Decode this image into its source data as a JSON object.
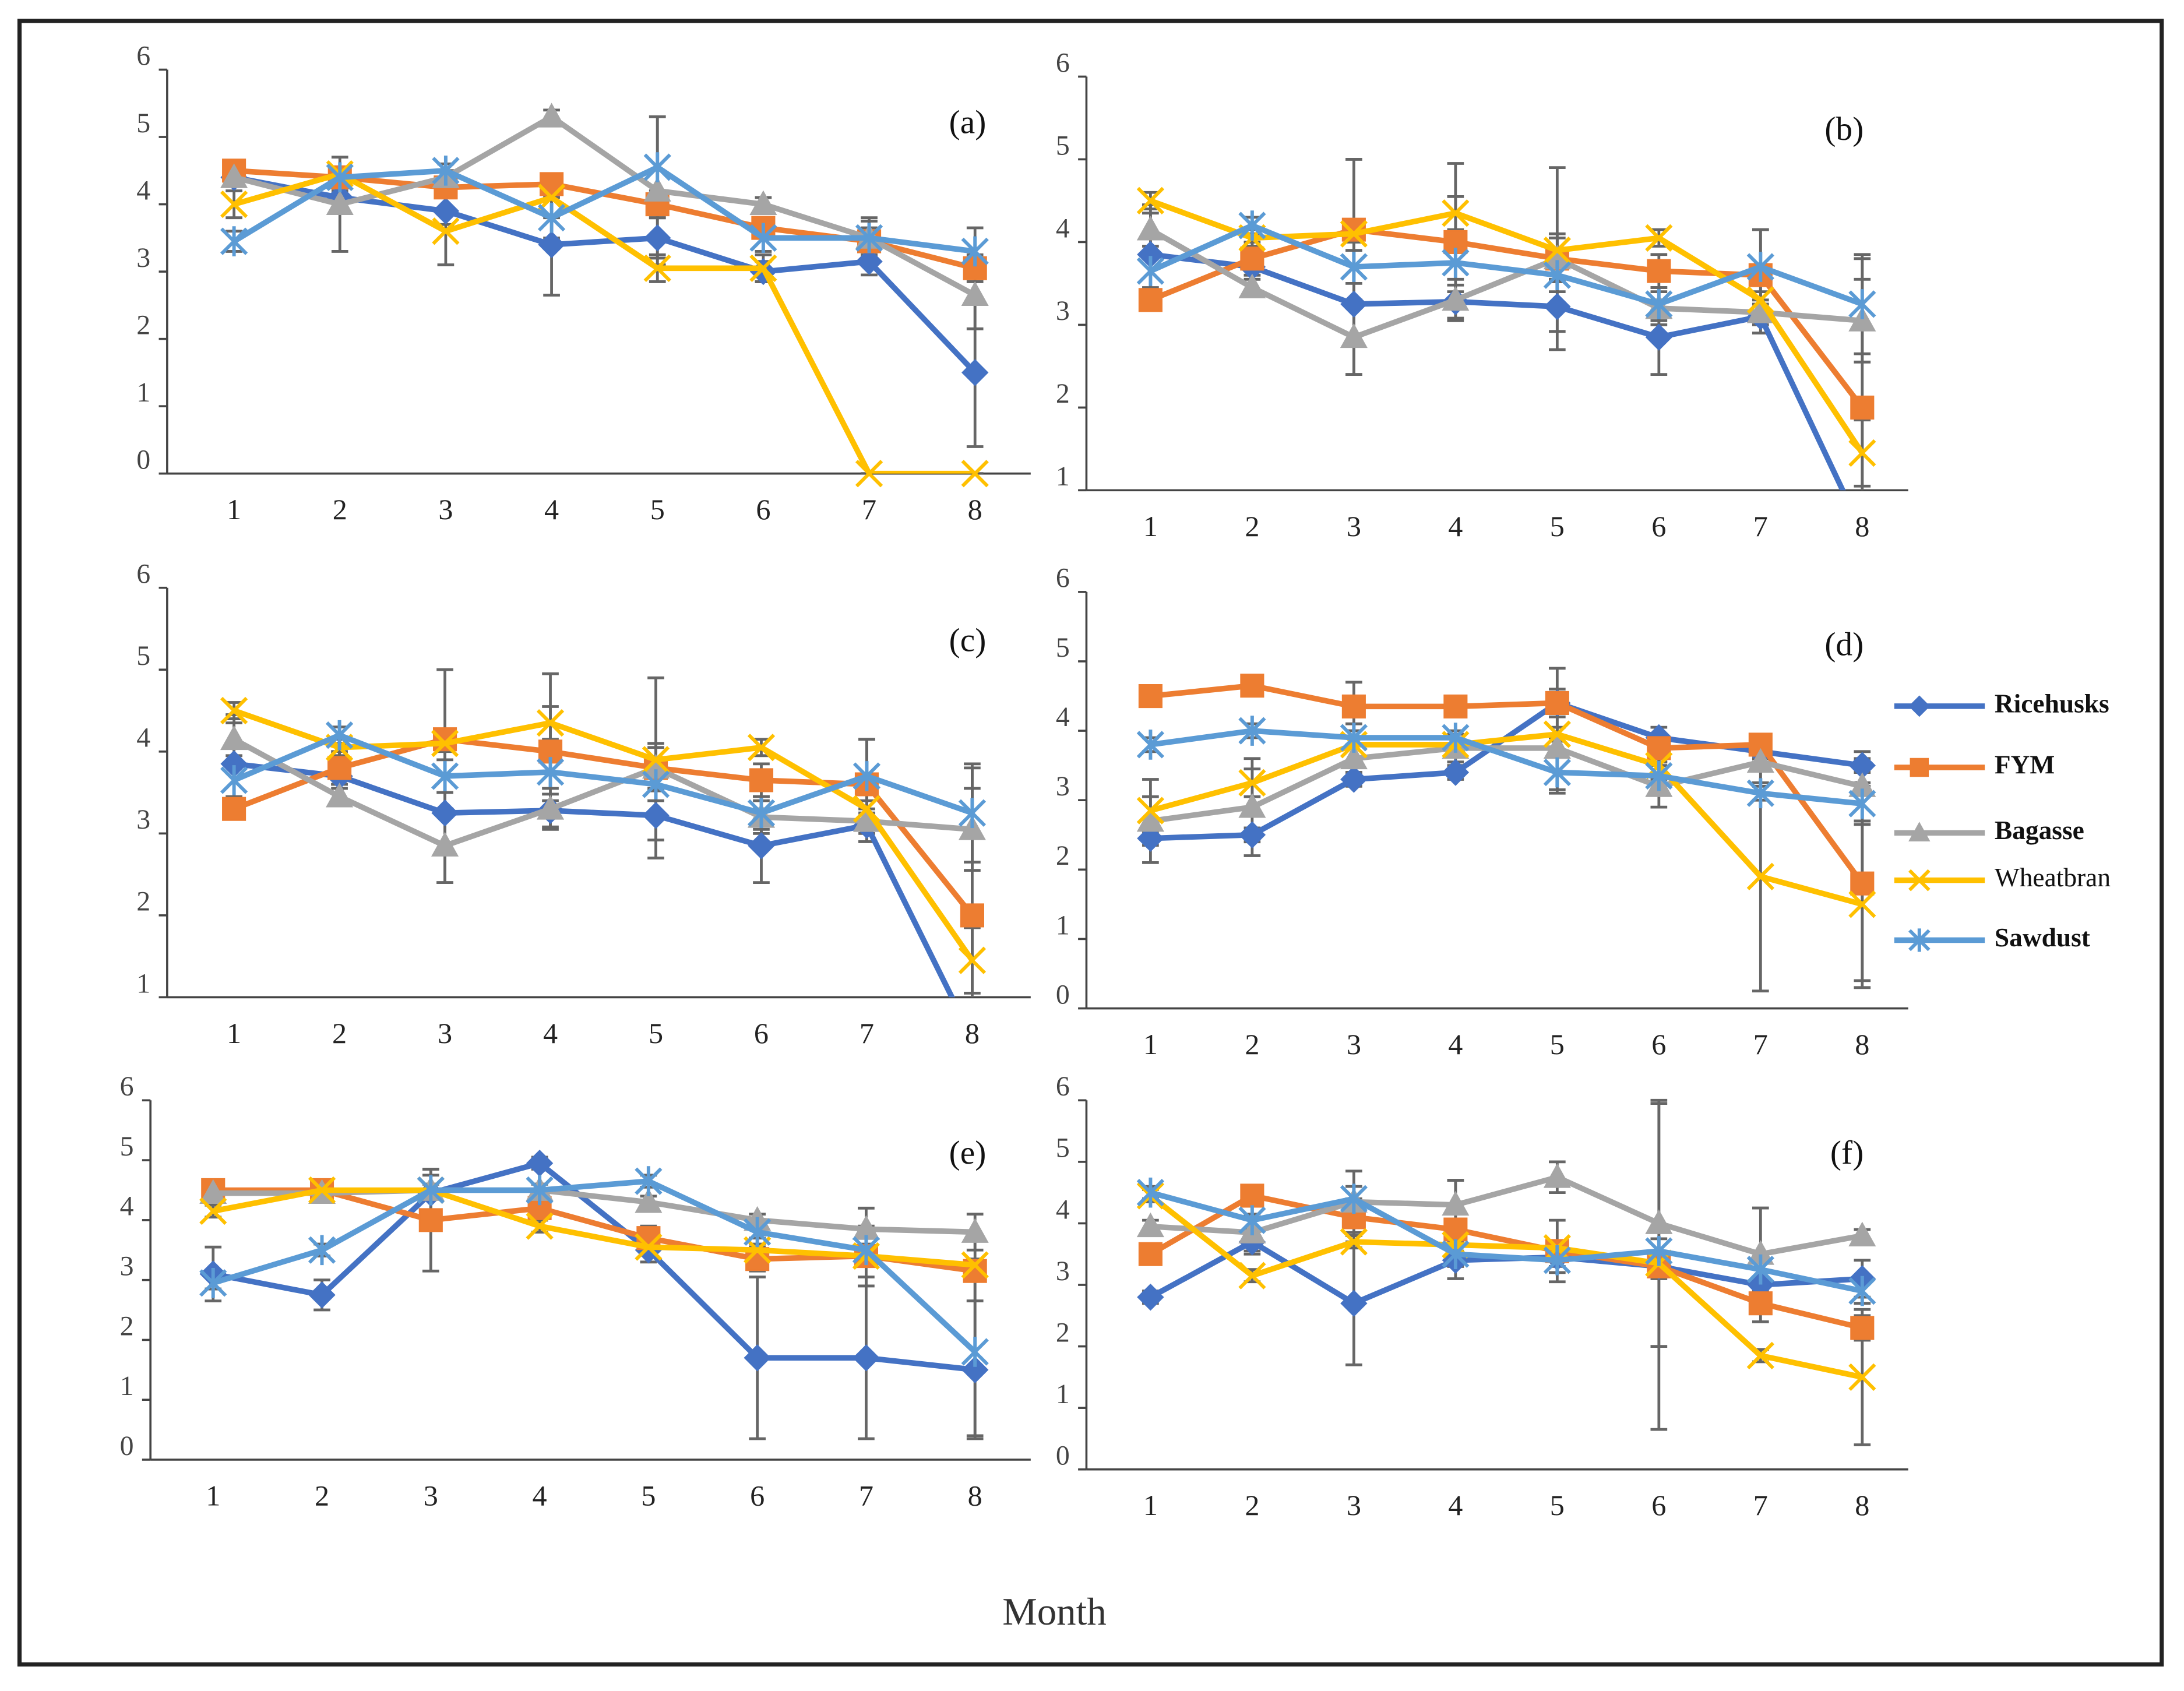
{
  "legend": [
    {
      "name": "Ricehusks",
      "color": "#4472c4",
      "marker": "diamond"
    },
    {
      "name": "FYM",
      "color": "#ed7d31",
      "marker": "square"
    },
    {
      "name": "Bagasse",
      "color": "#a5a5a5",
      "marker": "triangle"
    },
    {
      "name": "Wheatbran",
      "color": "#ffc000",
      "marker": "x"
    },
    {
      "name": "Sawdust",
      "color": "#5b9bd5",
      "marker": "asterisk"
    }
  ],
  "x_label": "Month",
  "chart_data": [
    {
      "type": "line",
      "title": "(a)",
      "categories": [
        1,
        2,
        3,
        4,
        5,
        6,
        7,
        8
      ],
      "ylim": [
        0,
        6
      ],
      "yticks": [
        0,
        1,
        2,
        3,
        4,
        5,
        6
      ],
      "series": [
        {
          "values": [
            4.4,
            4.1,
            3.9,
            3.4,
            3.5,
            3.0,
            3.15,
            1.5
          ],
          "errors": [
            0.1,
            0.1,
            0.2,
            0.75,
            0.3,
            0.15,
            0.2,
            1.1
          ]
        },
        {
          "values": [
            4.5,
            4.4,
            4.25,
            4.3,
            4.0,
            3.65,
            3.45,
            3.05
          ],
          "errors": [
            0.1,
            0.1,
            0.1,
            0.1,
            0.2,
            0.15,
            0.2,
            0.2
          ]
        },
        {
          "values": [
            4.4,
            4.0,
            4.4,
            5.3,
            4.2,
            4.0,
            3.5,
            2.65
          ],
          "errors": [
            0.1,
            0.7,
            0.1,
            0.1,
            1.1,
            0.1,
            0.3,
            0.5
          ]
        },
        {
          "values": [
            4.0,
            4.45,
            3.6,
            4.1,
            3.05,
            3.05,
            0,
            0
          ],
          "errors": [
            0.2,
            0.1,
            0.5,
            0.3,
            0.2,
            0.2,
            0,
            0
          ]
        },
        {
          "values": [
            3.45,
            4.4,
            4.5,
            3.8,
            4.55,
            3.5,
            3.5,
            3.3
          ],
          "errors": [
            0.15,
            0.1,
            0.1,
            0.3,
            0.75,
            0.2,
            0.25,
            0.35
          ]
        }
      ]
    },
    {
      "type": "line",
      "title": "(b)",
      "categories": [
        1,
        2,
        3,
        4,
        5,
        6,
        7,
        8
      ],
      "ylim": [
        1,
        6
      ],
      "yticks": [
        1,
        2,
        3,
        4,
        5,
        6
      ],
      "series": [
        {
          "values": [
            3.85,
            3.7,
            3.25,
            3.28,
            3.22,
            2.85,
            3.1,
            0.5
          ],
          "errors": [
            0.6,
            0.1,
            0.85,
            0.2,
            0.3,
            0.45,
            0.2,
            0.3
          ]
        },
        {
          "values": [
            3.3,
            3.8,
            4.15,
            4.0,
            3.8,
            3.65,
            3.6,
            2.0
          ],
          "errors": [
            0.1,
            0.2,
            0.85,
            0.95,
            1.1,
            0.2,
            0.55,
            1.8
          ]
        },
        {
          "values": [
            4.15,
            3.45,
            2.85,
            3.3,
            3.8,
            3.2,
            3.15,
            3.05
          ],
          "errors": [
            0.2,
            0.1,
            0.45,
            0.1,
            0.25,
            0.2,
            0.25,
            0.5
          ]
        },
        {
          "values": [
            4.5,
            4.05,
            4.1,
            4.35,
            3.9,
            4.05,
            3.3,
            1.45
          ],
          "errors": [
            0.1,
            0.1,
            0.1,
            0.2,
            0.2,
            0.1,
            0.3,
            0.4
          ]
        },
        {
          "values": [
            3.65,
            4.2,
            3.7,
            3.75,
            3.6,
            3.25,
            3.7,
            3.25
          ],
          "errors": [
            0.2,
            0.1,
            0.2,
            0.2,
            0.2,
            0.2,
            0.45,
            0.6
          ]
        }
      ]
    },
    {
      "type": "line",
      "title": "(c)",
      "categories": [
        1,
        2,
        3,
        4,
        5,
        6,
        7,
        8
      ],
      "ylim": [
        1,
        6
      ],
      "yticks": [
        1,
        2,
        3,
        4,
        5,
        6
      ],
      "series": [
        {
          "values": [
            3.85,
            3.7,
            3.25,
            3.28,
            3.22,
            2.85,
            3.1,
            0.5
          ],
          "errors": [
            0.6,
            0.1,
            0.85,
            0.2,
            0.3,
            0.45,
            0.2,
            0.3
          ]
        },
        {
          "values": [
            3.3,
            3.8,
            4.15,
            4.0,
            3.8,
            3.65,
            3.6,
            2.0
          ],
          "errors": [
            0.1,
            0.2,
            0.85,
            0.95,
            1.1,
            0.2,
            0.55,
            1.8
          ]
        },
        {
          "values": [
            4.15,
            3.45,
            2.85,
            3.3,
            3.8,
            3.2,
            3.15,
            3.05
          ],
          "errors": [
            0.2,
            0.1,
            0.45,
            0.1,
            0.25,
            0.2,
            0.25,
            0.5
          ]
        },
        {
          "values": [
            4.5,
            4.05,
            4.1,
            4.35,
            3.9,
            4.05,
            3.3,
            1.45
          ],
          "errors": [
            0.1,
            0.1,
            0.1,
            0.2,
            0.2,
            0.1,
            0.3,
            0.4
          ]
        },
        {
          "values": [
            3.65,
            4.2,
            3.7,
            3.75,
            3.6,
            3.25,
            3.7,
            3.25
          ],
          "errors": [
            0.2,
            0.1,
            0.2,
            0.2,
            0.2,
            0.2,
            0.45,
            0.6
          ]
        }
      ]
    },
    {
      "type": "line",
      "title": "(d)",
      "categories": [
        1,
        2,
        3,
        4,
        5,
        6,
        7,
        8
      ],
      "ylim": [
        0,
        6
      ],
      "yticks": [
        0,
        1,
        2,
        3,
        4,
        5,
        6
      ],
      "series": [
        {
          "values": [
            2.45,
            2.5,
            3.3,
            3.4,
            4.4,
            3.9,
            3.7,
            3.5
          ],
          "errors": [
            0.1,
            0.1,
            0.1,
            0.1,
            0.5,
            0.15,
            0.1,
            0.1
          ]
        },
        {
          "values": [
            4.5,
            4.65,
            4.35,
            4.35,
            4.4,
            3.75,
            3.8,
            1.8
          ],
          "errors": [
            0.1,
            0.1,
            0.35,
            0.1,
            0.2,
            0.2,
            0.1,
            1.4
          ]
        },
        {
          "values": [
            2.7,
            2.9,
            3.6,
            3.75,
            3.75,
            3.2,
            3.55,
            3.2
          ],
          "errors": [
            0.6,
            0.7,
            0.2,
            0.2,
            0.6,
            0.3,
            0.3,
            0.5
          ]
        },
        {
          "values": [
            2.85,
            3.25,
            3.8,
            3.8,
            3.95,
            3.5,
            1.9,
            1.5
          ],
          "errors": [
            0.2,
            0.2,
            0.3,
            0.1,
            0.1,
            0.2,
            1.65,
            1.2
          ]
        },
        {
          "values": [
            3.8,
            4.0,
            3.9,
            3.9,
            3.4,
            3.35,
            3.1,
            2.95
          ],
          "errors": [
            0.1,
            0.1,
            0.1,
            0.1,
            0.3,
            0.2,
            0.1,
            0.3
          ]
        }
      ]
    },
    {
      "type": "line",
      "title": "(e)",
      "categories": [
        1,
        2,
        3,
        4,
        5,
        6,
        7,
        8
      ],
      "ylim": [
        0,
        6
      ],
      "yticks": [
        0,
        1,
        2,
        3,
        4,
        5,
        6
      ],
      "series": [
        {
          "values": [
            3.1,
            2.75,
            4.45,
            4.95,
            3.5,
            1.7,
            1.7,
            1.5
          ],
          "errors": [
            0.45,
            0.25,
            0.3,
            0.1,
            0.2,
            1.35,
            1.35,
            1.15
          ]
        },
        {
          "values": [
            4.5,
            4.5,
            4.0,
            4.2,
            3.7,
            3.35,
            3.4,
            3.15
          ],
          "errors": [
            0.1,
            0.1,
            0.85,
            0.2,
            0.2,
            0.2,
            0.5,
            0.5
          ]
        },
        {
          "values": [
            4.45,
            4.45,
            4.5,
            4.5,
            4.3,
            4.0,
            3.85,
            3.8
          ],
          "errors": [
            0.1,
            0.1,
            0.35,
            0.1,
            0.1,
            0.1,
            0.35,
            0.3
          ]
        },
        {
          "values": [
            4.15,
            4.5,
            4.5,
            3.9,
            3.55,
            3.5,
            3.4,
            3.25
          ],
          "errors": [
            0.1,
            0.1,
            0.1,
            0.1,
            0.1,
            0.1,
            0.1,
            0.1
          ]
        },
        {
          "values": [
            2.95,
            3.5,
            4.5,
            4.5,
            4.65,
            3.8,
            3.5,
            1.8
          ],
          "errors": [
            0.1,
            0.1,
            0.1,
            0.1,
            0.1,
            0.1,
            0.1,
            1.4
          ]
        }
      ]
    },
    {
      "type": "line",
      "title": "(f)",
      "categories": [
        1,
        2,
        3,
        4,
        5,
        6,
        7,
        8
      ],
      "ylim": [
        0,
        6
      ],
      "yticks": [
        0,
        1,
        2,
        3,
        4,
        5,
        6
      ],
      "series": [
        {
          "values": [
            2.8,
            3.7,
            2.7,
            3.4,
            3.45,
            3.3,
            3.0,
            3.1
          ],
          "errors": [
            0.1,
            0.2,
            1.0,
            0.1,
            0.15,
            2.65,
            0.1,
            0.3
          ]
        },
        {
          "values": [
            3.5,
            4.45,
            4.1,
            3.9,
            3.55,
            3.3,
            2.7,
            2.3
          ],
          "errors": [
            0.1,
            0.1,
            0.3,
            0.8,
            0.5,
            0.2,
            0.3,
            0.2
          ]
        },
        {
          "values": [
            3.95,
            3.85,
            4.35,
            4.3,
            4.75,
            4.0,
            3.5,
            3.8
          ],
          "errors": [
            0.1,
            0.3,
            0.5,
            0.4,
            0.25,
            2.0,
            0.75,
            0.1
          ]
        },
        {
          "values": [
            4.45,
            3.15,
            3.7,
            3.65,
            3.6,
            3.35,
            1.85,
            1.5
          ],
          "errors": [
            0.1,
            0.1,
            0.1,
            0.1,
            0.1,
            0.1,
            0.1,
            1.1
          ]
        },
        {
          "values": [
            4.5,
            4.05,
            4.4,
            3.5,
            3.4,
            3.55,
            3.25,
            2.9
          ],
          "errors": [
            0.1,
            0.4,
            0.2,
            0.2,
            0.2,
            0.2,
            0.2,
            0.2
          ]
        }
      ]
    }
  ]
}
